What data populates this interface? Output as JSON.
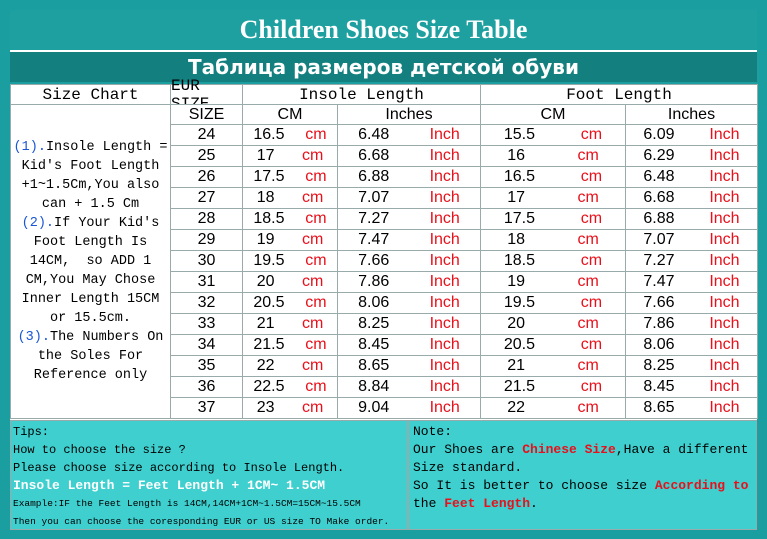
{
  "header": {
    "title": "Children Shoes Size Table",
    "subtitle": "Таблица размеров детской обуви"
  },
  "table": {
    "headers": {
      "size_chart": "Size Chart",
      "eur": "EUR SIZE",
      "insole": "Insole Length",
      "foot": "Foot Length"
    },
    "subheaders": [
      "SIZE",
      "CM",
      "Inches",
      "CM",
      "Inches"
    ],
    "units": {
      "cm": "cm",
      "inch": "Inch"
    },
    "rows": [
      [
        24,
        16.5,
        6.48,
        15.5,
        6.09
      ],
      [
        25,
        17,
        6.68,
        16,
        6.29
      ],
      [
        26,
        17.5,
        6.88,
        16.5,
        6.48
      ],
      [
        27,
        18,
        7.07,
        17,
        6.68
      ],
      [
        28,
        18.5,
        7.27,
        17.5,
        6.88
      ],
      [
        29,
        19,
        7.47,
        18,
        7.07
      ],
      [
        30,
        19.5,
        7.66,
        18.5,
        7.27
      ],
      [
        31,
        20,
        7.86,
        19,
        7.47
      ],
      [
        32,
        20.5,
        8.06,
        19.5,
        7.66
      ],
      [
        33,
        21,
        8.25,
        20,
        7.86
      ],
      [
        34,
        21.5,
        8.45,
        20.5,
        8.06
      ],
      [
        35,
        22,
        8.65,
        21,
        8.25
      ],
      [
        36,
        22.5,
        8.84,
        21.5,
        8.45
      ],
      [
        37,
        23,
        9.04,
        22,
        8.65
      ]
    ],
    "notes": [
      {
        "marker": "(1).",
        "text": "Insole Length ="
      },
      {
        "text": "Kid's Foot Length"
      },
      {
        "text": "+1~1.5Cm,You also"
      },
      {
        "text": "can + 1.5 Cm"
      },
      {
        "marker": "(2).",
        "text": "If Your Kid's"
      },
      {
        "text": "Foot Length Is"
      },
      {
        "text": "14CM,  so ADD 1"
      },
      {
        "text": "CM,You May Chose"
      },
      {
        "text": "Inner Length 15CM"
      },
      {
        "text": "or 15.5cm."
      },
      {
        "marker": "(3).",
        "text": "The Numbers On"
      },
      {
        "text": "the Soles For"
      },
      {
        "text": "Reference only"
      }
    ]
  },
  "tips": [
    {
      "text": "Tips:"
    },
    {
      "text": "How to choose the size ?"
    },
    {
      "text": "Please choose size according to Insole Length."
    },
    {
      "text": "Insole Length = Feet Length + 1CM~ 1.5CM",
      "style": "highlight"
    },
    {
      "text": "Example:IF the Feet Length is 14CM,14CM+1CM~1.5CM=15CM~15.5CM",
      "style": "small"
    },
    {
      "text": "Then you can choose the coresponding EUR or US size TO Make order.",
      "style": "small"
    }
  ],
  "note": [
    [
      {
        "text": "Note:"
      }
    ],
    [
      {
        "text": "Our Shoes are "
      },
      {
        "text": "Chinese Size",
        "color": "#e8101a"
      },
      {
        "text": ",Have a different"
      }
    ],
    [
      {
        "text": "Size standard."
      }
    ],
    [
      {
        "text": "So It is better to choose size "
      },
      {
        "text": "According to",
        "color": "#e8101a"
      }
    ],
    [
      {
        "text": "the "
      },
      {
        "text": "Feet Length",
        "color": "#e8101a"
      },
      {
        "text": "."
      }
    ]
  ]
}
